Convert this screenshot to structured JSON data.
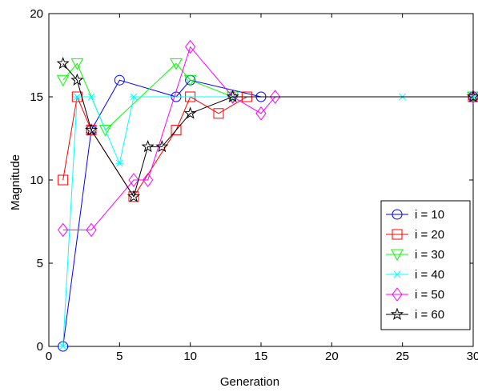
{
  "chart_data": {
    "type": "line",
    "title": "",
    "xlabel": "Generation",
    "ylabel": "Magnitude",
    "xlim": [
      0,
      30
    ],
    "ylim": [
      0,
      20
    ],
    "xticks": [
      0,
      5,
      10,
      15,
      20,
      25,
      30
    ],
    "yticks": [
      0,
      5,
      10,
      15,
      20
    ],
    "grid": false,
    "legend_position": "bottom-right",
    "series": [
      {
        "name": "i = 10",
        "color": "#0000ff",
        "marker": "circle",
        "points": [
          [
            1,
            0
          ],
          [
            3,
            13
          ],
          [
            5,
            16
          ],
          [
            9,
            15
          ],
          [
            10,
            16
          ],
          [
            15,
            15
          ],
          [
            30,
            15
          ]
        ]
      },
      {
        "name": "i = 20",
        "color": "#ff0000",
        "marker": "square",
        "points": [
          [
            1,
            10
          ],
          [
            2,
            15
          ],
          [
            3,
            13
          ],
          [
            6,
            9
          ],
          [
            9,
            13
          ],
          [
            10,
            15
          ],
          [
            12,
            14
          ],
          [
            14,
            15
          ],
          [
            30,
            15
          ]
        ]
      },
      {
        "name": "i = 30",
        "color": "#00ff00",
        "marker": "triangle-down",
        "points": [
          [
            1,
            16
          ],
          [
            2,
            17
          ],
          [
            4,
            13
          ],
          [
            9,
            17
          ],
          [
            10,
            16
          ],
          [
            13,
            15
          ],
          [
            30,
            15
          ]
        ]
      },
      {
        "name": "i = 40",
        "color": "#00ffff",
        "marker": "asterisk",
        "points": [
          [
            1,
            0
          ],
          [
            2,
            15
          ],
          [
            3,
            15
          ],
          [
            5,
            11
          ],
          [
            6,
            15
          ],
          [
            13,
            15
          ],
          [
            25,
            15
          ],
          [
            30,
            15
          ]
        ]
      },
      {
        "name": "i = 50",
        "color": "#ff00ff",
        "marker": "diamond",
        "points": [
          [
            1,
            7
          ],
          [
            3,
            7
          ],
          [
            6,
            10
          ],
          [
            7,
            10
          ],
          [
            10,
            18
          ],
          [
            13,
            15
          ],
          [
            15,
            14
          ],
          [
            16,
            15
          ],
          [
            30,
            15
          ]
        ]
      },
      {
        "name": "i = 60",
        "color": "#000000",
        "marker": "pentagram",
        "points": [
          [
            1,
            17
          ],
          [
            2,
            16
          ],
          [
            3,
            13
          ],
          [
            6,
            9
          ],
          [
            7,
            12
          ],
          [
            8,
            12
          ],
          [
            10,
            14
          ],
          [
            13,
            15
          ],
          [
            30,
            15
          ]
        ]
      }
    ]
  }
}
